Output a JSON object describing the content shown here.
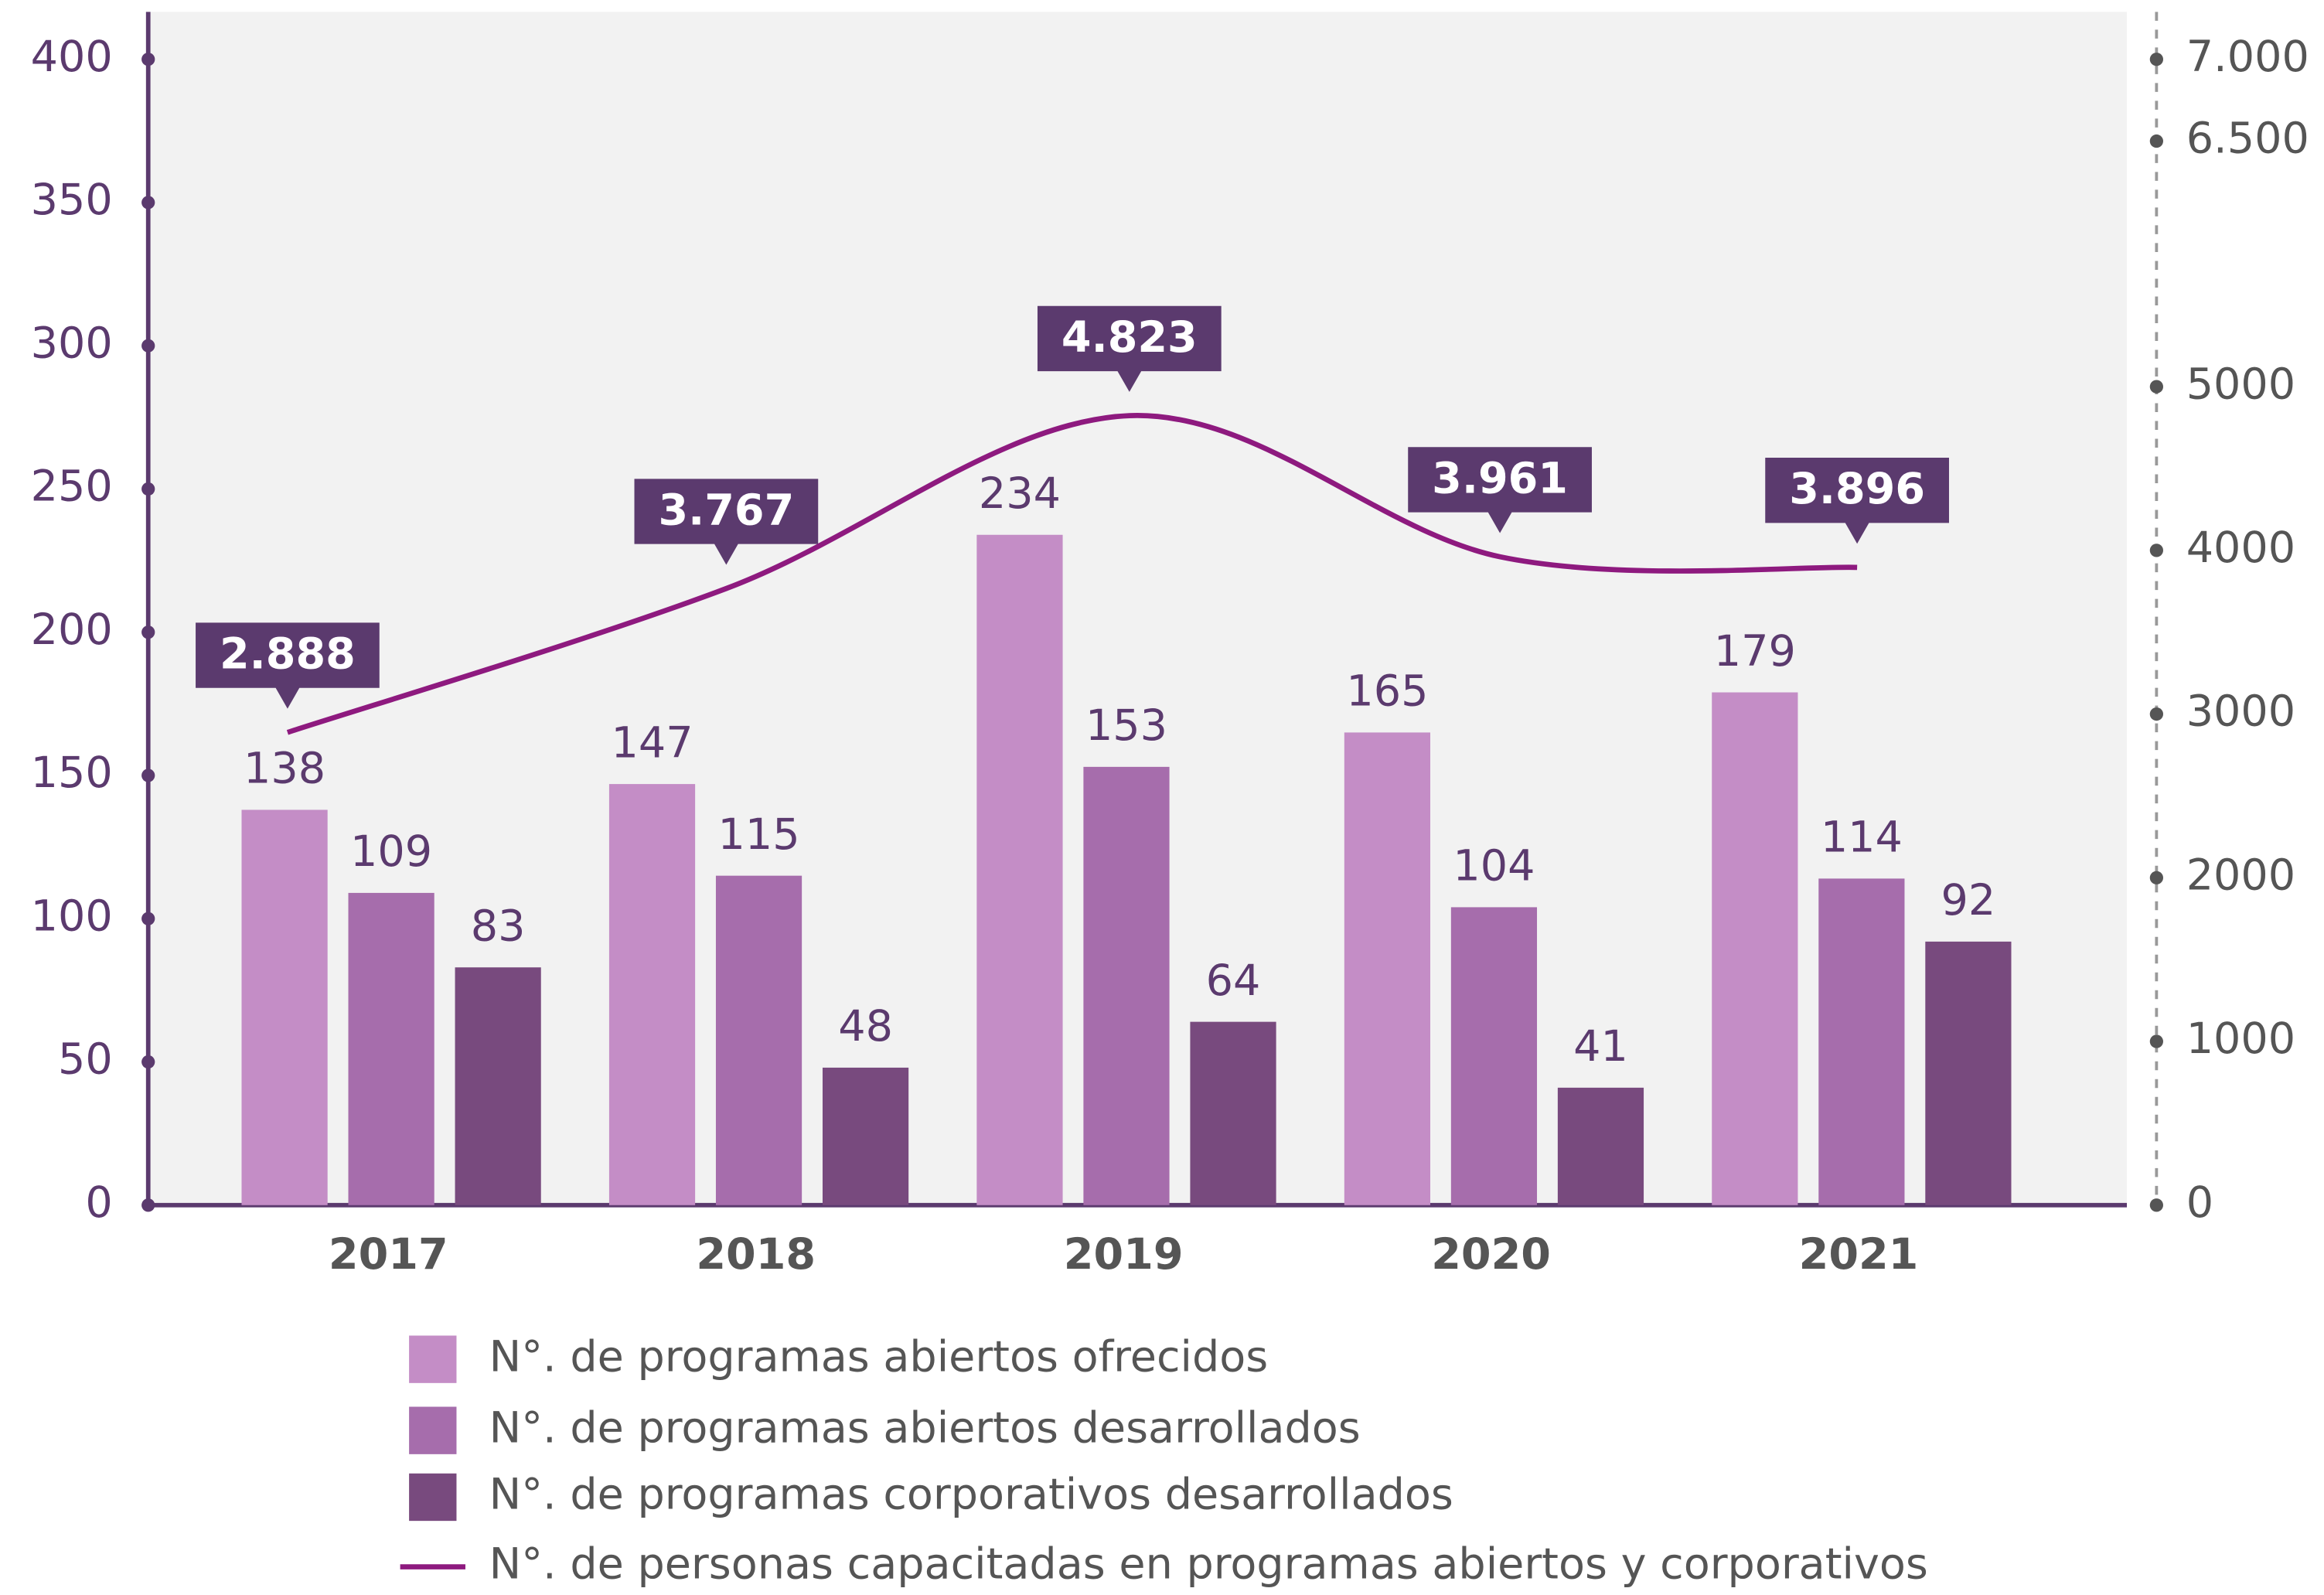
{
  "chart_data": {
    "type": "bar",
    "categories": [
      "2017",
      "2018",
      "2019",
      "2020",
      "2021"
    ],
    "series": [
      {
        "name": "N°. de programas abiertos ofrecidos",
        "color": "#c48dc6",
        "values": [
          138,
          147,
          234,
          165,
          179
        ]
      },
      {
        "name": "N°. de programas abiertos desarrollados",
        "color": "#a66dac",
        "values": [
          109,
          115,
          153,
          104,
          114
        ]
      },
      {
        "name": "N°. de programas corporativos desarrollados",
        "color": "#784a7e",
        "values": [
          83,
          48,
          64,
          41,
          92
        ]
      },
      {
        "name": "N°. de personas capacitadas en programas abiertos y corporativos",
        "color": "#8e1a7f",
        "type": "line",
        "axis": "y2",
        "values": [
          2888,
          3767,
          4823,
          3961,
          3896
        ],
        "value_labels": [
          "2.888",
          "3.767",
          "4.823",
          "3.961",
          "3.896"
        ]
      }
    ],
    "ylim": [
      0,
      400
    ],
    "yticks": [
      0,
      50,
      100,
      150,
      200,
      250,
      300,
      350,
      400
    ],
    "y2lim": [
      0,
      7000
    ],
    "y2ticks": [
      0,
      1000,
      2000,
      3000,
      4000,
      5000,
      {
        "value": 6500,
        "label": "6.500"
      },
      {
        "value": 7000,
        "label": "7.000"
      }
    ]
  }
}
